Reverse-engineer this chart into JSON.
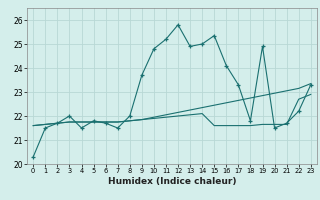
{
  "xlabel": "Humidex (Indice chaleur)",
  "background_color": "#d4eeeb",
  "grid_color": "#b8d8d5",
  "line_color": "#1a7070",
  "xlim": [
    -0.5,
    23.5
  ],
  "ylim": [
    20.0,
    26.5
  ],
  "yticks": [
    20,
    21,
    22,
    23,
    24,
    25,
    26
  ],
  "xticks": [
    0,
    1,
    2,
    3,
    4,
    5,
    6,
    7,
    8,
    9,
    10,
    11,
    12,
    13,
    14,
    15,
    16,
    17,
    18,
    19,
    20,
    21,
    22,
    23
  ],
  "series1_x": [
    0,
    1,
    2,
    3,
    4,
    5,
    6,
    7,
    8,
    9,
    10,
    11,
    12,
    13,
    14,
    15,
    16,
    17,
    18,
    19,
    20,
    21,
    22,
    23
  ],
  "series1_y": [
    20.3,
    21.5,
    21.7,
    22.0,
    21.5,
    21.8,
    21.7,
    21.5,
    22.0,
    23.7,
    24.8,
    25.2,
    25.8,
    24.9,
    25.0,
    25.35,
    24.1,
    23.3,
    21.8,
    24.9,
    21.5,
    21.7,
    22.2,
    23.3
  ],
  "series2_x": [
    0,
    1,
    2,
    3,
    4,
    5,
    6,
    7,
    8,
    9,
    10,
    11,
    12,
    13,
    14,
    15,
    16,
    17,
    18,
    19,
    20,
    21,
    22,
    23
  ],
  "series2_y": [
    21.6,
    21.65,
    21.7,
    21.75,
    21.75,
    21.75,
    21.75,
    21.75,
    21.8,
    21.85,
    21.9,
    21.95,
    22.0,
    22.05,
    22.1,
    21.6,
    21.6,
    21.6,
    21.6,
    21.65,
    21.65,
    21.65,
    22.7,
    22.9
  ],
  "series3_x": [
    0,
    1,
    2,
    3,
    4,
    5,
    6,
    7,
    8,
    9,
    10,
    11,
    12,
    13,
    14,
    15,
    16,
    17,
    18,
    19,
    20,
    21,
    22,
    23
  ],
  "series3_y": [
    21.6,
    21.65,
    21.7,
    21.75,
    21.75,
    21.75,
    21.75,
    21.75,
    21.8,
    21.85,
    21.95,
    22.05,
    22.15,
    22.25,
    22.35,
    22.45,
    22.55,
    22.65,
    22.75,
    22.85,
    22.95,
    23.05,
    23.15,
    23.35
  ]
}
